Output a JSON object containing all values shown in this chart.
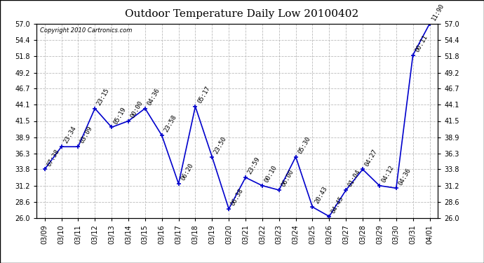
{
  "title": "Outdoor Temperature Daily Low 20100402",
  "copyright": "Copyright 2010 Cartronics.com",
  "background_color": "#ffffff",
  "line_color": "#0000cc",
  "marker_color": "#0000cc",
  "grid_color": "#bbbbbb",
  "text_color": "#000000",
  "dates": [
    "03/09",
    "03/10",
    "03/11",
    "03/12",
    "03/13",
    "03/14",
    "03/15",
    "03/16",
    "03/17",
    "03/18",
    "03/19",
    "03/20",
    "03/21",
    "03/22",
    "03/23",
    "03/24",
    "03/25",
    "03/26",
    "03/27",
    "03/28",
    "03/29",
    "03/30",
    "03/31",
    "04/01"
  ],
  "temperatures": [
    33.8,
    37.4,
    37.4,
    43.5,
    40.5,
    41.5,
    43.5,
    39.2,
    31.5,
    43.8,
    35.8,
    27.5,
    32.5,
    31.2,
    30.5,
    35.8,
    27.8,
    26.3,
    30.5,
    33.8,
    31.2,
    30.8,
    52.0,
    57.0
  ],
  "time_labels": [
    "07:38",
    "23:34",
    "03:09",
    "23:15",
    "05:19",
    "00:00",
    "04:36",
    "23:58",
    "06:20",
    "05:17",
    "23:50",
    "06:38",
    "23:59",
    "00:10",
    "06:00",
    "05:30",
    "20:43",
    "04:45",
    "01:04",
    "04:27",
    "04:12",
    "04:36",
    "00:11",
    "11:90"
  ],
  "ylim": [
    26.0,
    57.0
  ],
  "yticks": [
    26.0,
    28.6,
    31.2,
    33.8,
    36.3,
    38.9,
    41.5,
    44.1,
    46.7,
    49.2,
    51.8,
    54.4,
    57.0
  ],
  "title_fontsize": 11,
  "label_fontsize": 6.5,
  "tick_fontsize": 7,
  "copyright_fontsize": 6
}
